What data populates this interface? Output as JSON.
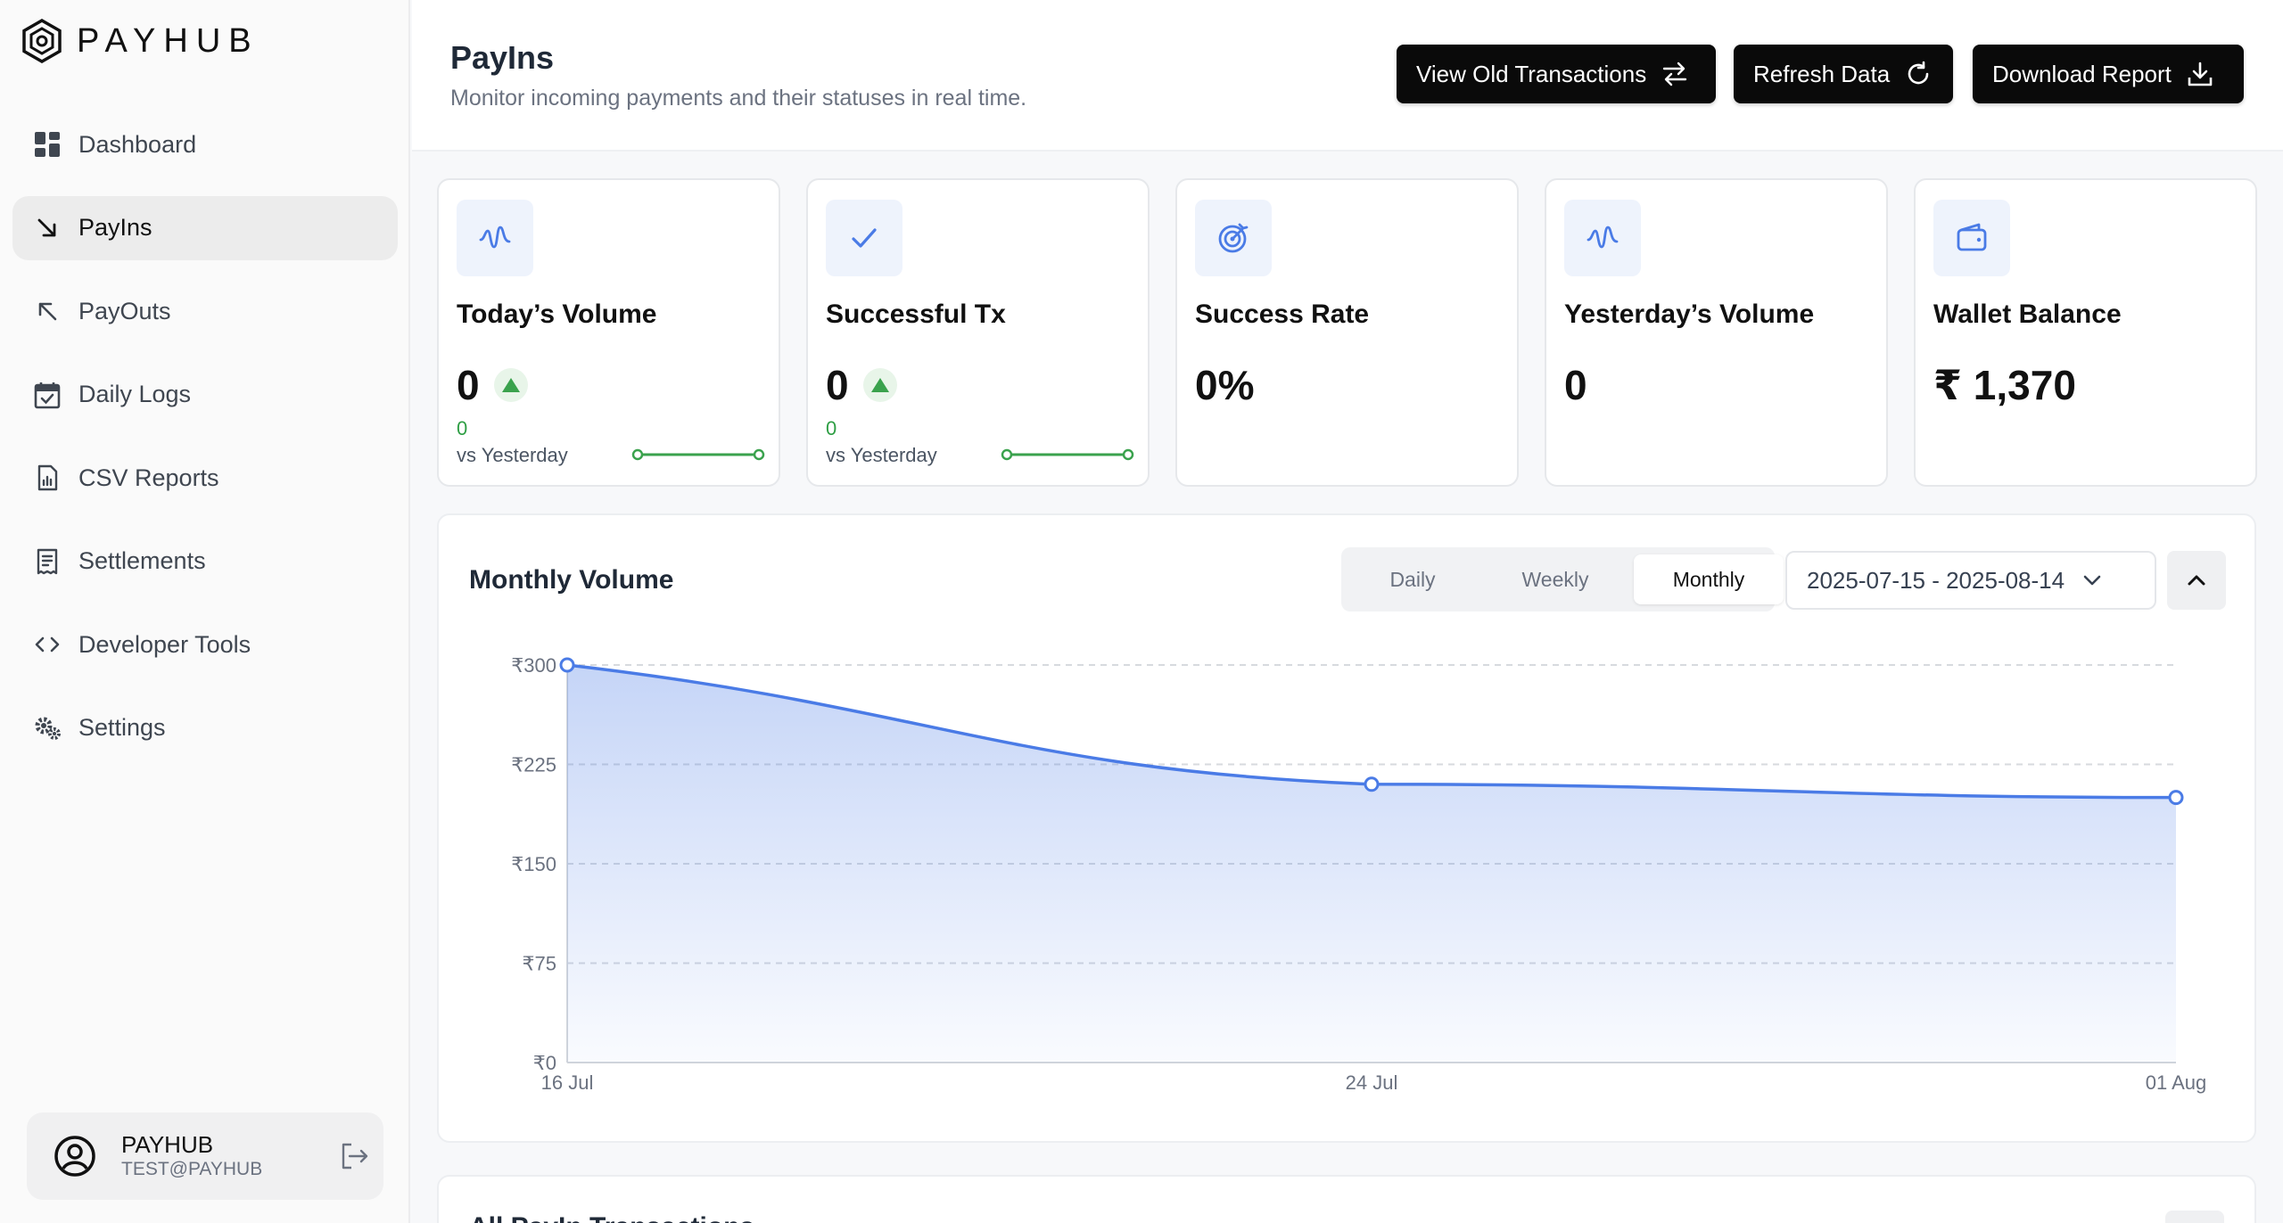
{
  "brand": {
    "name": "PAYHUB"
  },
  "sidebar": {
    "items": [
      {
        "label": "Dashboard",
        "icon": "dashboard-icon"
      },
      {
        "label": "PayIns",
        "icon": "arrow-down-right-icon",
        "active": true
      },
      {
        "label": "PayOuts",
        "icon": "arrow-up-left-icon"
      },
      {
        "label": "Daily Logs",
        "icon": "calendar-check-icon"
      },
      {
        "label": "CSV Reports",
        "icon": "file-chart-icon"
      },
      {
        "label": "Settlements",
        "icon": "receipt-icon"
      },
      {
        "label": "Developer Tools",
        "icon": "code-icon"
      },
      {
        "label": "Settings",
        "icon": "gears-icon"
      }
    ],
    "user": {
      "name": "PAYHUB",
      "email": "TEST@PAYHUB"
    }
  },
  "header": {
    "title": "PayIns",
    "subtitle": "Monitor incoming payments and their statuses in real time.",
    "buttons": {
      "view_old": "View Old Transactions",
      "refresh": "Refresh Data",
      "download": "Download Report"
    }
  },
  "stats": [
    {
      "label": "Today’s Volume",
      "value": "0",
      "delta": "0",
      "vs": "vs Yesterday"
    },
    {
      "label": "Successful Tx",
      "value": "0",
      "delta": "0",
      "vs": "vs Yesterday"
    },
    {
      "label": "Success Rate",
      "value": "0%"
    },
    {
      "label": "Yesterday’s Volume",
      "value": "0"
    },
    {
      "label": "Wallet Balance",
      "value": "₹ 1,370"
    }
  ],
  "chart_panel": {
    "title": "Monthly Volume",
    "tabs": [
      "Daily",
      "Weekly",
      "Monthly"
    ],
    "active_tab": "Monthly",
    "date_range": "2025-07-15 - 2025-08-14"
  },
  "next_panel": {
    "title": "All PayIn Transactions"
  },
  "colors": {
    "accent": "#4a7be6",
    "success": "#2e9e44",
    "dark_button": "#0a0a0a"
  },
  "chart_data": {
    "type": "area",
    "title": "Monthly Volume",
    "categories": [
      "16 Jul",
      "24 Jul",
      "01 Aug"
    ],
    "values": [
      300,
      210,
      200
    ],
    "y_ticks": [
      0,
      75,
      150,
      225,
      300
    ],
    "y_tick_labels": [
      "₹0",
      "₹75",
      "₹150",
      "₹225",
      "₹300"
    ],
    "ylim": [
      0,
      300
    ],
    "grid": true,
    "xlabel": "",
    "ylabel": ""
  }
}
